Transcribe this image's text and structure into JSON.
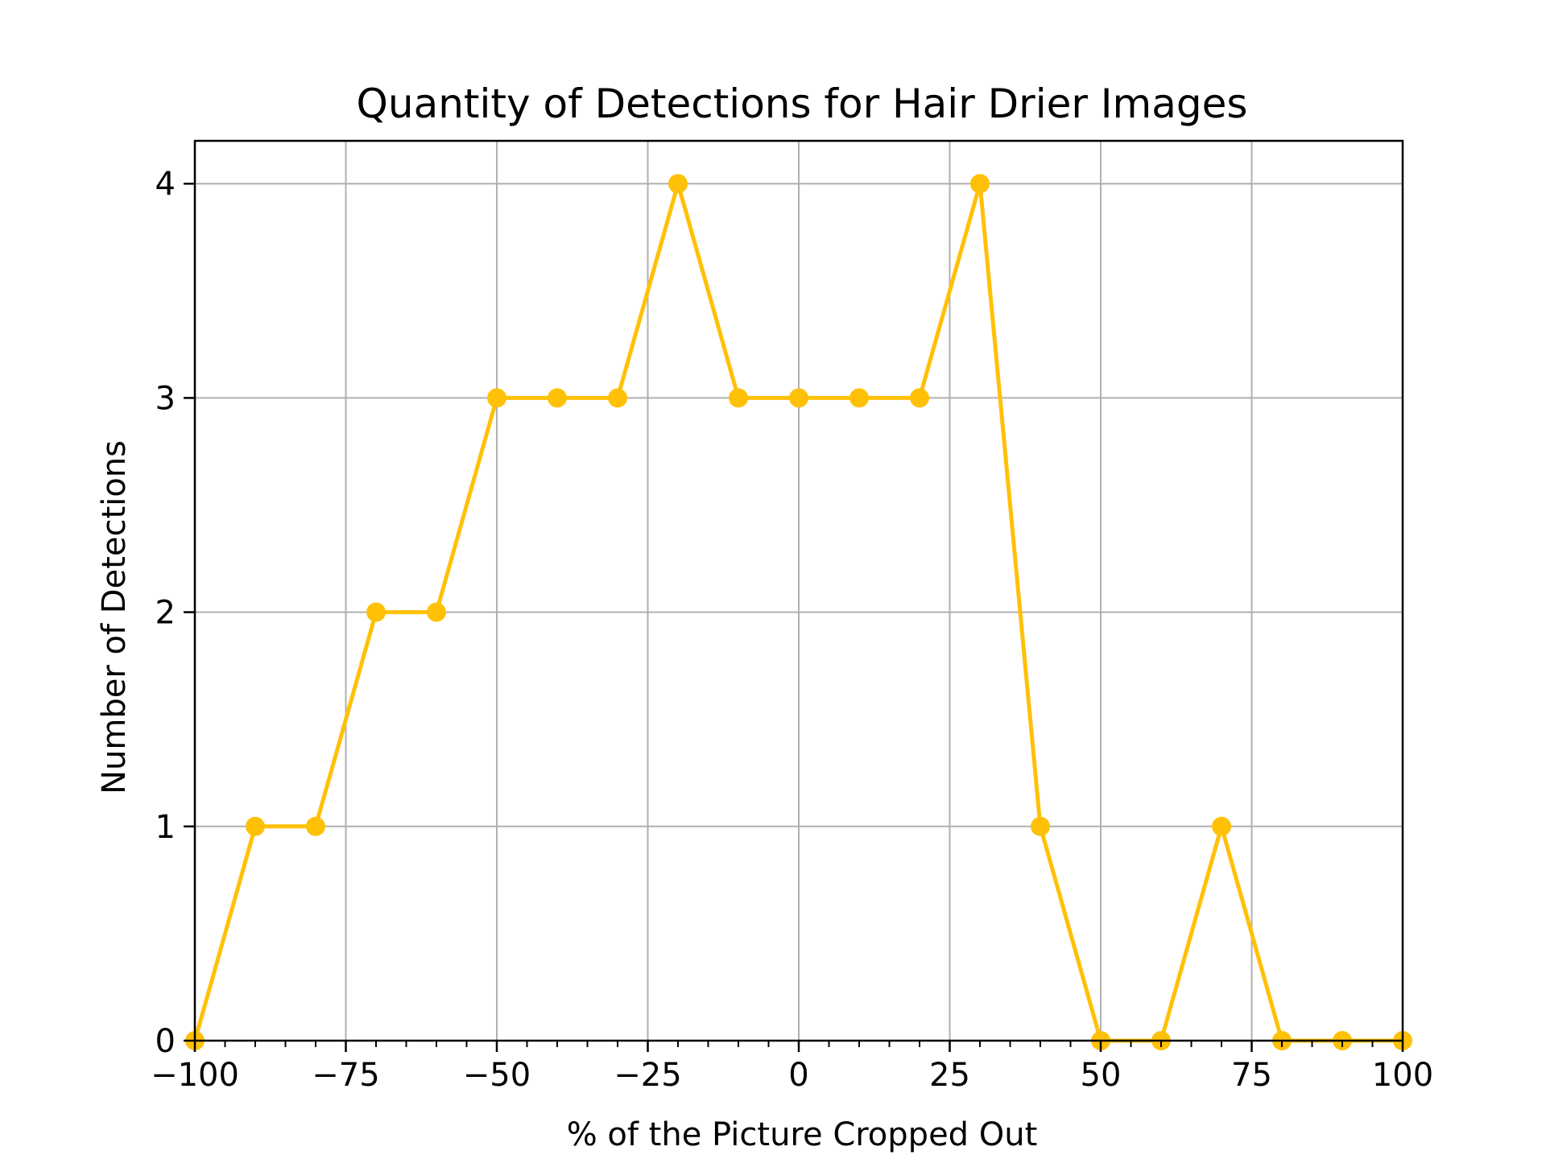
{
  "chart_data": {
    "type": "line",
    "title": "Quantity of Detections for Hair Drier Images",
    "xlabel": "% of the Picture Cropped Out",
    "ylabel": "Number of Detections",
    "xlim": [
      -100,
      100
    ],
    "ylim": [
      0,
      4.2
    ],
    "xticks": [
      -100,
      -75,
      -50,
      -25,
      0,
      25,
      50,
      75,
      100
    ],
    "xtick_labels": [
      "−100",
      "−75",
      "−50",
      "−25",
      "0",
      "25",
      "50",
      "75",
      "100"
    ],
    "yticks": [
      0,
      1,
      2,
      3,
      4
    ],
    "ytick_labels": [
      "0",
      "1",
      "2",
      "3",
      "4"
    ],
    "x_minor_step": 5,
    "grid": true,
    "series": [
      {
        "color": "#FFC107",
        "x": [
          -100,
          -90,
          -80,
          -70,
          -60,
          -50,
          -40,
          -30,
          -20,
          -10,
          0,
          10,
          20,
          30,
          40,
          50,
          60,
          70,
          80,
          90,
          100
        ],
        "y": [
          0,
          1,
          1,
          2,
          2,
          3,
          3,
          3,
          4,
          3,
          3,
          3,
          3,
          4,
          1,
          0,
          0,
          1,
          0,
          0,
          0
        ]
      }
    ]
  }
}
